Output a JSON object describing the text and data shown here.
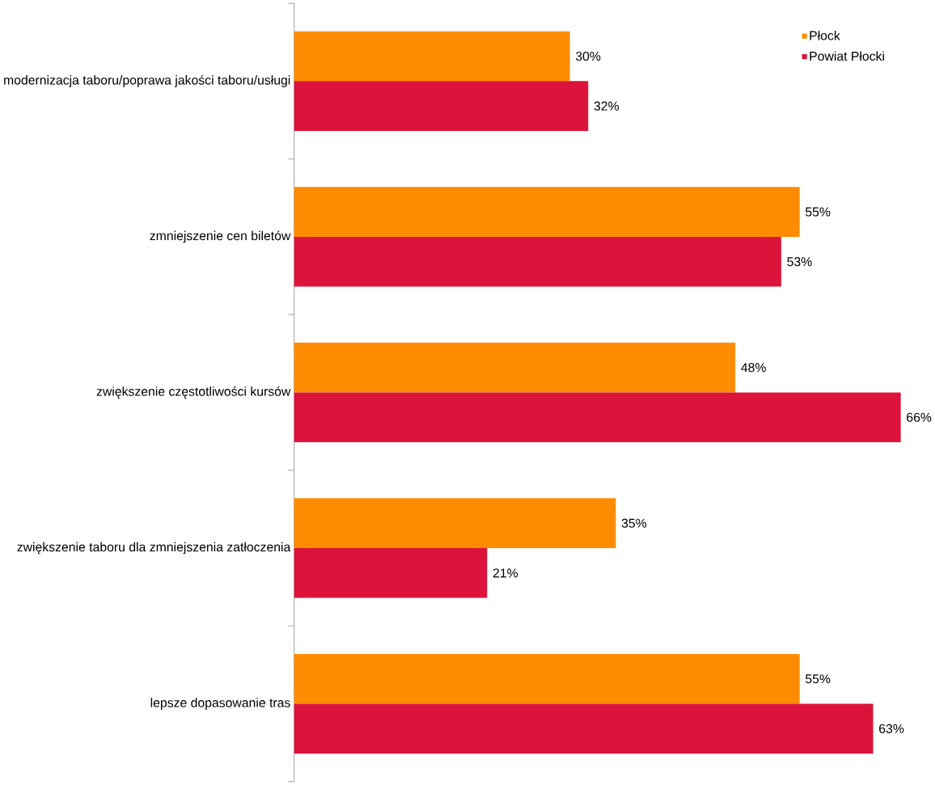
{
  "chart_data": {
    "type": "bar",
    "orientation": "horizontal",
    "categories": [
      "modernizacja taboru/poprawa jakości taboru/usługi",
      "zmniejszenie cen biletów",
      "zwiększenie częstotliwości kursów",
      "zwiększenie taboru dla zmniejszenia zatłoczenia",
      "lepsze dopasowanie tras"
    ],
    "series": [
      {
        "name": "Płock",
        "color": "#ff8c00",
        "values": [
          30,
          55,
          48,
          35,
          55
        ],
        "value_labels": [
          "30%",
          "55%",
          "48%",
          "35%",
          "55%"
        ]
      },
      {
        "name": "Powiat Płocki",
        "color": "#dc143c",
        "values": [
          32,
          53,
          66,
          21,
          63
        ],
        "value_labels": [
          "32%",
          "53%",
          "66%",
          "21%",
          "63%"
        ]
      }
    ],
    "tick_labels": "y",
    "legend": "top right"
  }
}
